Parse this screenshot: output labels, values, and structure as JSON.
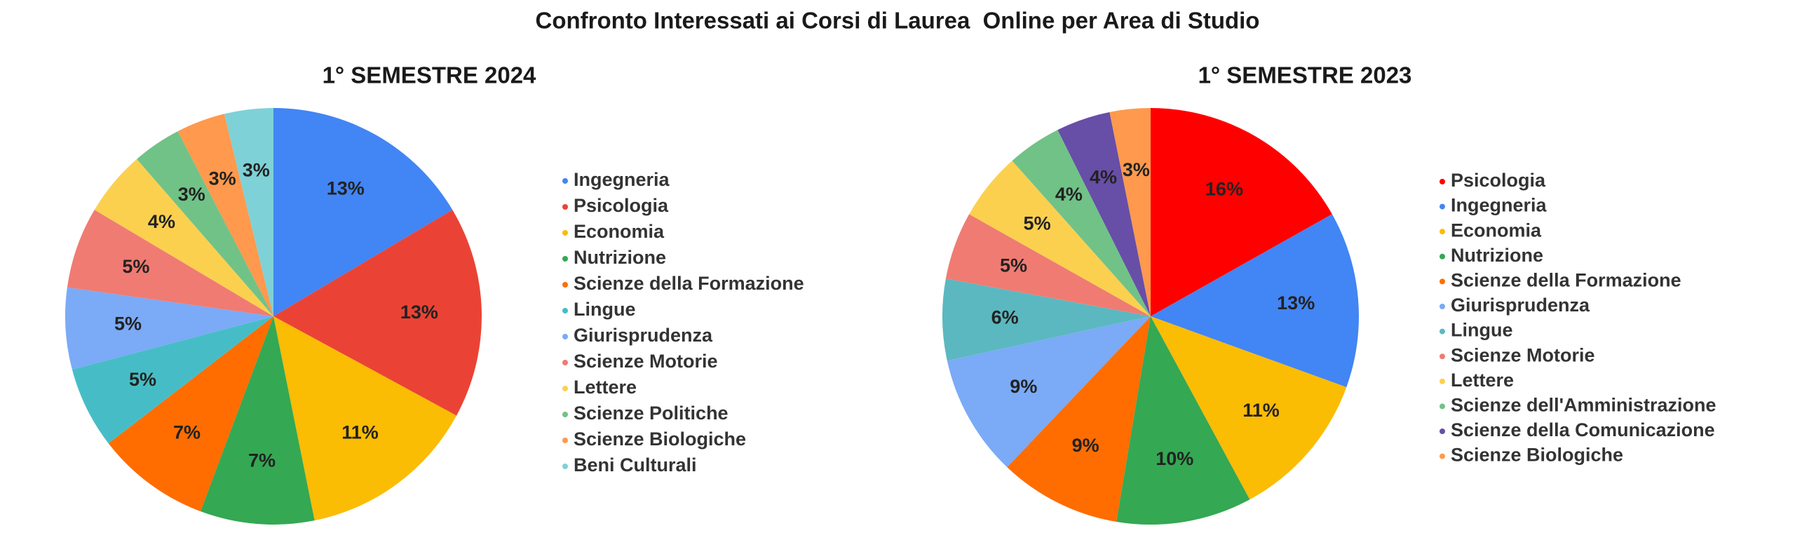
{
  "title": "Confronto Interessati ai Corsi di Laurea  Online per Area di Studio",
  "chart_data": [
    {
      "type": "pie",
      "title": "1° SEMESTRE 2024",
      "categories": [
        "Ingegneria",
        "Psicologia",
        "Economia",
        "Nutrizione",
        "Scienze della Formazione",
        "Lingue",
        "Giurisprudenza",
        "Scienze Motorie",
        "Lettere",
        "Scienze Politiche",
        "Scienze Biologiche",
        "Beni Culturali"
      ],
      "values": [
        13,
        13,
        11,
        7,
        7,
        5,
        5,
        5,
        4,
        3,
        3,
        3
      ],
      "value_labels": [
        "13%",
        "13%",
        "11%",
        "7%",
        "7%",
        "5%",
        "5%",
        "5%",
        "4%",
        "3%",
        "3%",
        "3%"
      ],
      "colors": [
        "#4285f4",
        "#ea4335",
        "#fbbc04",
        "#34a853",
        "#ff6d01",
        "#46bdc6",
        "#7baaf7",
        "#f07b72",
        "#fcd04f",
        "#71c287",
        "#ff994d",
        "#7ed1d7"
      ],
      "legend": "right"
    },
    {
      "type": "pie",
      "title": "1° SEMESTRE 2023",
      "categories": [
        "Psicologia",
        "Ingegneria",
        "Economia",
        "Nutrizione",
        "Scienze della Formazione",
        "Giurisprudenza",
        "Lingue",
        "Scienze Motorie",
        "Lettere",
        "Scienze dell'Amministrazione",
        "Scienze della Comunicazione",
        "Scienze Biologiche"
      ],
      "values": [
        16,
        13,
        11,
        10,
        9,
        9,
        6,
        5,
        5,
        4,
        4,
        3
      ],
      "value_labels": [
        "16%",
        "13%",
        "11%",
        "10%",
        "9%",
        "9%",
        "6%",
        "5%",
        "5%",
        "4%",
        "4%",
        "3%"
      ],
      "colors": [
        "#ff0000",
        "#4285f4",
        "#fbbc04",
        "#34a853",
        "#ff6d01",
        "#7baaf7",
        "#5bb8c0",
        "#f07b72",
        "#fcd04f",
        "#71c287",
        "#674ea7",
        "#ff994d"
      ],
      "legend": "right"
    }
  ]
}
